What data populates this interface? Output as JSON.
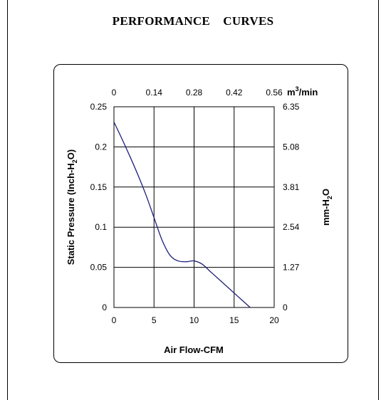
{
  "page": {
    "title": "PERFORMANCE    CURVES"
  },
  "chart_data": {
    "type": "line",
    "title": "PERFORMANCE    CURVES",
    "xlabel": "Air Flow-CFM",
    "ylabel_left": {
      "main": "Static Pressure (Inch-H",
      "sub": "2",
      "tail": "O)"
    },
    "ylabel_right": {
      "main": "mm-H",
      "sub": "2",
      "tail": "O"
    },
    "top_unit": {
      "main": "m",
      "sup": "3",
      "tail": "/min"
    },
    "xlim": [
      0,
      20
    ],
    "ylim": [
      0,
      0.25
    ],
    "x_ticks": [
      "0",
      "5",
      "10",
      "15",
      "20"
    ],
    "y_ticks_left": [
      "0",
      "0.05",
      "0.1",
      "0.15",
      "0.2",
      "0.25"
    ],
    "y_ticks_right": [
      "0",
      "1.27",
      "2.54",
      "3.81",
      "5.08",
      "6.35"
    ],
    "x_ticks_top": [
      "0",
      "0.14",
      "0.28",
      "0.42",
      "0.56"
    ],
    "grid": true,
    "line_color": "#1f1f7a",
    "series": [
      {
        "x": [
          0,
          1,
          2,
          3,
          4,
          5,
          6,
          7,
          8,
          9,
          10,
          11,
          12,
          13,
          14,
          15,
          16,
          17
        ],
        "y": [
          0.231,
          0.21,
          0.188,
          0.165,
          0.14,
          0.112,
          0.084,
          0.065,
          0.058,
          0.057,
          0.058,
          0.054,
          0.045,
          0.036,
          0.027,
          0.018,
          0.009,
          0
        ]
      }
    ]
  }
}
